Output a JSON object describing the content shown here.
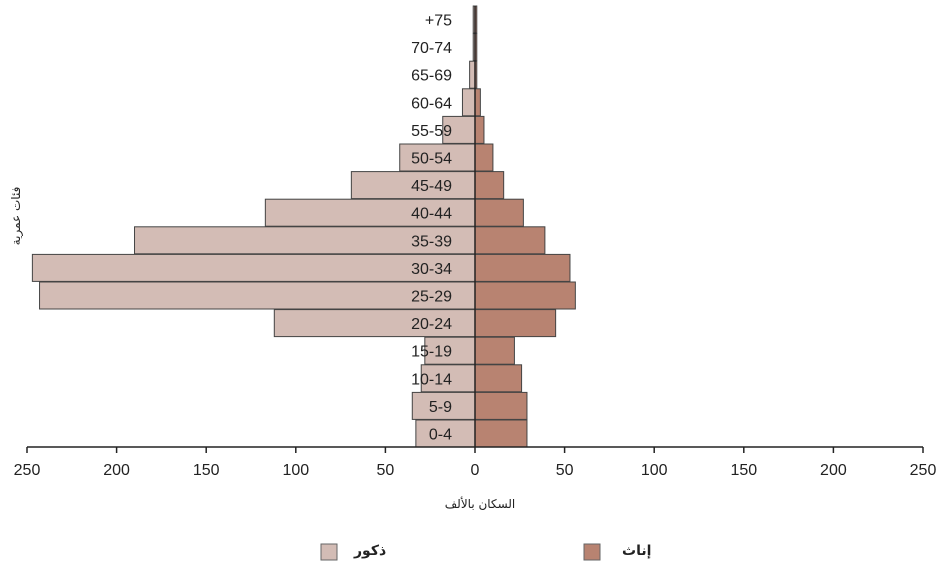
{
  "chart_data": {
    "type": "bar",
    "orientation": "horizontal",
    "subtype": "population-pyramid",
    "categories": [
      "0-4",
      "5-9",
      "10-14",
      "15-19",
      "20-24",
      "25-29",
      "30-34",
      "35-39",
      "40-44",
      "45-49",
      "50-54",
      "55-59",
      "60-64",
      "65-69",
      "70-74",
      "+75"
    ],
    "series": [
      {
        "name": "ذكور",
        "side": "left",
        "color": "#d3bcb5",
        "values": [
          33,
          35,
          30,
          28,
          112,
          243,
          247,
          190,
          117,
          69,
          42,
          18,
          7,
          3,
          1,
          1
        ]
      },
      {
        "name": "إناث",
        "side": "right",
        "color": "#b88371",
        "values": [
          29,
          29,
          26,
          22,
          45,
          56,
          53,
          39,
          27,
          16,
          10,
          5,
          3,
          1,
          1,
          1
        ]
      }
    ],
    "xlabel": "السكان بالألف",
    "ylabel": "فئات عمرية",
    "xlim": [
      -250,
      250
    ],
    "ticks": [
      -250,
      -200,
      -150,
      -100,
      -50,
      0,
      50,
      100,
      150,
      200,
      250
    ],
    "tick_labels": [
      "250",
      "200",
      "150",
      "100",
      "50",
      "0",
      "50",
      "100",
      "150",
      "200",
      "250"
    ],
    "grid": false,
    "legend_position": "bottom"
  }
}
